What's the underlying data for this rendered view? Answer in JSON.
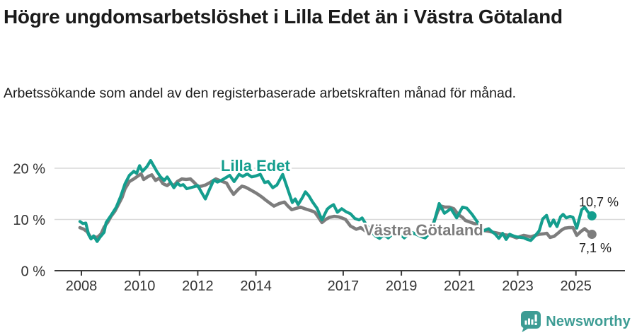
{
  "header": {
    "title": "Högre ungdomsarbetslöshet i Lilla Edet än i Västra Götaland",
    "subtitle": "Arbetssökande som andel av den registerbaserade arbetskraften månad för månad."
  },
  "colors": {
    "lilla_edet": "#149E8E",
    "vastra_gotaland": "#7D7D7D",
    "grid": "#D9D9D9",
    "axis": "#3A3A3A",
    "tick_text": "#333333",
    "annotation_text": "#222222",
    "logo": "#3D9C94"
  },
  "footer": {
    "brand": "Newsworthy"
  },
  "chart_data": {
    "type": "line",
    "title": "Högre ungdomsarbetslöshet i Lilla Edet än i Västra Götaland",
    "ylabel": "",
    "xlabel": "",
    "unit": "%",
    "ylim": [
      0,
      22
    ],
    "xlim": [
      2007.9,
      2026.2
    ],
    "grid": "horizontal",
    "legend_position": "inline-labels",
    "x_ticks": [
      "2008",
      "2010",
      "2012",
      "2014",
      "2017",
      "2019",
      "2021",
      "2023",
      "2025"
    ],
    "x_tick_years": [
      2008,
      2010,
      2012,
      2014,
      2017,
      2019,
      2021,
      2023,
      2025
    ],
    "y_ticks": [
      {
        "value": 20,
        "label": "20 %"
      },
      {
        "value": 10,
        "label": "10 %"
      },
      {
        "value": 0,
        "label": "0 %"
      }
    ],
    "series": [
      {
        "id": "lilla-edet",
        "name": "Lilla Edet",
        "color": "#149E8E",
        "end_label": "10,7 %",
        "end_value": 10.7,
        "points": [
          [
            2007.95,
            9.6
          ],
          [
            2008.05,
            9.2
          ],
          [
            2008.15,
            9.3
          ],
          [
            2008.25,
            7.0
          ],
          [
            2008.33,
            6.2
          ],
          [
            2008.42,
            6.8
          ],
          [
            2008.54,
            5.7
          ],
          [
            2008.65,
            6.6
          ],
          [
            2008.78,
            7.5
          ],
          [
            2008.85,
            9.4
          ],
          [
            2009.02,
            10.8
          ],
          [
            2009.2,
            12.4
          ],
          [
            2009.35,
            14.5
          ],
          [
            2009.5,
            17.0
          ],
          [
            2009.65,
            18.6
          ],
          [
            2009.8,
            19.4
          ],
          [
            2009.9,
            19.0
          ],
          [
            2010.0,
            20.5
          ],
          [
            2010.1,
            19.4
          ],
          [
            2010.25,
            20.3
          ],
          [
            2010.38,
            21.5
          ],
          [
            2010.5,
            20.3
          ],
          [
            2010.6,
            19.3
          ],
          [
            2010.72,
            18.3
          ],
          [
            2010.85,
            17.6
          ],
          [
            2010.95,
            18.3
          ],
          [
            2011.05,
            17.4
          ],
          [
            2011.18,
            16.2
          ],
          [
            2011.3,
            17.1
          ],
          [
            2011.4,
            16.6
          ],
          [
            2011.5,
            16.8
          ],
          [
            2011.62,
            16.0
          ],
          [
            2011.75,
            16.2
          ],
          [
            2011.88,
            16.4
          ],
          [
            2012.0,
            16.6
          ],
          [
            2012.13,
            15.3
          ],
          [
            2012.26,
            14.0
          ],
          [
            2012.4,
            15.8
          ],
          [
            2012.55,
            17.7
          ],
          [
            2012.68,
            17.3
          ],
          [
            2012.8,
            17.6
          ],
          [
            2012.95,
            18.1
          ],
          [
            2013.1,
            18.6
          ],
          [
            2013.25,
            17.4
          ],
          [
            2013.42,
            18.8
          ],
          [
            2013.55,
            18.4
          ],
          [
            2013.7,
            18.9
          ],
          [
            2013.85,
            18.3
          ],
          [
            2014.0,
            18.5
          ],
          [
            2014.15,
            18.8
          ],
          [
            2014.3,
            17.2
          ],
          [
            2014.42,
            17.4
          ],
          [
            2014.58,
            16.2
          ],
          [
            2014.72,
            16.7
          ],
          [
            2014.92,
            18.8
          ],
          [
            2015.1,
            15.8
          ],
          [
            2015.25,
            13.3
          ],
          [
            2015.35,
            14.0
          ],
          [
            2015.45,
            12.9
          ],
          [
            2015.6,
            14.3
          ],
          [
            2015.7,
            15.4
          ],
          [
            2015.82,
            14.6
          ],
          [
            2015.95,
            13.4
          ],
          [
            2016.1,
            12.2
          ],
          [
            2016.27,
            9.9
          ],
          [
            2016.45,
            12.0
          ],
          [
            2016.55,
            12.5
          ],
          [
            2016.67,
            12.9
          ],
          [
            2016.8,
            11.4
          ],
          [
            2016.95,
            12.1
          ],
          [
            2017.1,
            11.5
          ],
          [
            2017.25,
            11.1
          ],
          [
            2017.4,
            10.2
          ],
          [
            2017.55,
            9.9
          ],
          [
            2017.65,
            10.3
          ],
          [
            2017.8,
            8.9
          ],
          [
            2017.95,
            7.8
          ],
          [
            2018.1,
            6.8
          ],
          [
            2018.25,
            6.3
          ],
          [
            2018.4,
            7.0
          ],
          [
            2018.55,
            6.4
          ],
          [
            2018.7,
            7.2
          ],
          [
            2018.85,
            7.3
          ],
          [
            2019.0,
            6.9
          ],
          [
            2019.1,
            6.4
          ],
          [
            2019.25,
            7.2
          ],
          [
            2019.4,
            7.4
          ],
          [
            2019.55,
            7.0
          ],
          [
            2019.7,
            6.6
          ],
          [
            2019.82,
            6.4
          ],
          [
            2019.95,
            7.2
          ],
          [
            2020.1,
            9.0
          ],
          [
            2020.3,
            13.1
          ],
          [
            2020.48,
            11.2
          ],
          [
            2020.7,
            12.1
          ],
          [
            2020.9,
            10.3
          ],
          [
            2021.1,
            12.4
          ],
          [
            2021.25,
            12.2
          ],
          [
            2021.43,
            11.0
          ],
          [
            2021.6,
            9.6
          ],
          [
            2021.7,
            8.9
          ],
          [
            2021.82,
            7.8
          ],
          [
            2022.0,
            8.2
          ],
          [
            2022.12,
            7.6
          ],
          [
            2022.23,
            7.1
          ],
          [
            2022.35,
            6.3
          ],
          [
            2022.48,
            7.3
          ],
          [
            2022.6,
            6.1
          ],
          [
            2022.72,
            7.1
          ],
          [
            2022.85,
            6.8
          ],
          [
            2022.96,
            6.6
          ],
          [
            2023.1,
            6.5
          ],
          [
            2023.21,
            6.4
          ],
          [
            2023.33,
            6.1
          ],
          [
            2023.45,
            5.9
          ],
          [
            2023.57,
            6.6
          ],
          [
            2023.74,
            7.8
          ],
          [
            2023.86,
            10.1
          ],
          [
            2023.99,
            10.8
          ],
          [
            2024.11,
            8.7
          ],
          [
            2024.23,
            9.9
          ],
          [
            2024.35,
            8.6
          ],
          [
            2024.47,
            10.5
          ],
          [
            2024.56,
            11.0
          ],
          [
            2024.67,
            10.3
          ],
          [
            2024.8,
            10.6
          ],
          [
            2024.9,
            10.4
          ],
          [
            2025.03,
            8.3
          ],
          [
            2025.2,
            11.9
          ],
          [
            2025.3,
            12.4
          ],
          [
            2025.42,
            11.4
          ],
          [
            2025.55,
            10.7
          ]
        ]
      },
      {
        "id": "vastra-gotaland",
        "name": "Västra Götaland",
        "color": "#7D7D7D",
        "end_label": "7,1 %",
        "end_value": 7.1,
        "points": [
          [
            2007.95,
            8.4
          ],
          [
            2008.08,
            8.1
          ],
          [
            2008.2,
            7.6
          ],
          [
            2008.33,
            6.4
          ],
          [
            2008.45,
            6.6
          ],
          [
            2008.55,
            6.5
          ],
          [
            2008.68,
            7.2
          ],
          [
            2008.78,
            8.5
          ],
          [
            2008.9,
            9.4
          ],
          [
            2009.02,
            10.6
          ],
          [
            2009.15,
            11.6
          ],
          [
            2009.27,
            12.9
          ],
          [
            2009.4,
            14.3
          ],
          [
            2009.5,
            16.0
          ],
          [
            2009.65,
            17.4
          ],
          [
            2009.8,
            17.9
          ],
          [
            2009.95,
            18.5
          ],
          [
            2010.05,
            18.9
          ],
          [
            2010.14,
            17.8
          ],
          [
            2010.3,
            18.4
          ],
          [
            2010.42,
            18.7
          ],
          [
            2010.55,
            17.6
          ],
          [
            2010.68,
            18.1
          ],
          [
            2010.8,
            17.0
          ],
          [
            2010.95,
            16.6
          ],
          [
            2011.05,
            17.1
          ],
          [
            2011.18,
            16.6
          ],
          [
            2011.3,
            17.4
          ],
          [
            2011.45,
            17.9
          ],
          [
            2011.6,
            17.8
          ],
          [
            2011.75,
            17.9
          ],
          [
            2011.88,
            17.2
          ],
          [
            2012.01,
            16.4
          ],
          [
            2012.13,
            16.5
          ],
          [
            2012.26,
            16.7
          ],
          [
            2012.45,
            17.3
          ],
          [
            2012.62,
            17.9
          ],
          [
            2012.8,
            17.5
          ],
          [
            2012.99,
            17.1
          ],
          [
            2013.1,
            16.0
          ],
          [
            2013.23,
            14.9
          ],
          [
            2013.38,
            15.8
          ],
          [
            2013.52,
            16.5
          ],
          [
            2013.64,
            16.3
          ],
          [
            2013.8,
            15.8
          ],
          [
            2013.96,
            15.3
          ],
          [
            2014.1,
            14.8
          ],
          [
            2014.2,
            14.4
          ],
          [
            2014.33,
            13.8
          ],
          [
            2014.45,
            13.3
          ],
          [
            2014.62,
            12.6
          ],
          [
            2014.8,
            13.1
          ],
          [
            2014.98,
            13.4
          ],
          [
            2015.1,
            12.6
          ],
          [
            2015.23,
            11.9
          ],
          [
            2015.4,
            12.2
          ],
          [
            2015.54,
            12.4
          ],
          [
            2015.68,
            12.1
          ],
          [
            2015.79,
            11.9
          ],
          [
            2015.95,
            11.6
          ],
          [
            2016.03,
            11.4
          ],
          [
            2016.15,
            10.4
          ],
          [
            2016.27,
            9.4
          ],
          [
            2016.4,
            10.0
          ],
          [
            2016.52,
            10.4
          ],
          [
            2016.69,
            10.6
          ],
          [
            2016.85,
            10.5
          ],
          [
            2016.95,
            10.3
          ],
          [
            2017.08,
            10.0
          ],
          [
            2017.25,
            8.7
          ],
          [
            2017.45,
            8.1
          ],
          [
            2017.6,
            8.4
          ],
          [
            2017.75,
            7.8
          ],
          [
            2017.88,
            7.5
          ],
          [
            2018.0,
            7.3
          ],
          [
            2018.15,
            7.1
          ],
          [
            2018.3,
            7.4
          ],
          [
            2018.45,
            7.2
          ],
          [
            2018.6,
            7.3
          ],
          [
            2018.75,
            7.5
          ],
          [
            2018.9,
            7.2
          ],
          [
            2019.05,
            6.9
          ],
          [
            2019.2,
            7.1
          ],
          [
            2019.35,
            7.3
          ],
          [
            2019.5,
            7.2
          ],
          [
            2019.65,
            7.3
          ],
          [
            2019.8,
            7.4
          ],
          [
            2019.95,
            7.8
          ],
          [
            2020.1,
            9.2
          ],
          [
            2020.25,
            11.6
          ],
          [
            2020.37,
            12.6
          ],
          [
            2020.5,
            12.4
          ],
          [
            2020.65,
            12.4
          ],
          [
            2020.8,
            12.1
          ],
          [
            2020.95,
            11.0
          ],
          [
            2021.1,
            10.4
          ],
          [
            2021.2,
            9.8
          ],
          [
            2021.35,
            9.5
          ],
          [
            2021.5,
            9.2
          ],
          [
            2021.58,
            9.1
          ],
          [
            2021.7,
            8.0
          ],
          [
            2021.85,
            7.8
          ],
          [
            2022.0,
            7.7
          ],
          [
            2022.15,
            7.5
          ],
          [
            2022.25,
            7.4
          ],
          [
            2022.4,
            7.2
          ],
          [
            2022.55,
            7.0
          ],
          [
            2022.72,
            6.9
          ],
          [
            2022.96,
            6.4
          ],
          [
            2023.1,
            6.7
          ],
          [
            2023.21,
            6.9
          ],
          [
            2023.45,
            6.6
          ],
          [
            2023.6,
            6.9
          ],
          [
            2023.74,
            7.1
          ],
          [
            2023.9,
            7.2
          ],
          [
            2024.0,
            7.3
          ],
          [
            2024.11,
            6.5
          ],
          [
            2024.25,
            6.7
          ],
          [
            2024.4,
            7.4
          ],
          [
            2024.5,
            7.9
          ],
          [
            2024.62,
            8.3
          ],
          [
            2024.75,
            8.4
          ],
          [
            2024.9,
            8.4
          ],
          [
            2025.03,
            6.9
          ],
          [
            2025.18,
            7.7
          ],
          [
            2025.3,
            8.2
          ],
          [
            2025.42,
            7.6
          ],
          [
            2025.55,
            7.1
          ]
        ]
      }
    ]
  }
}
